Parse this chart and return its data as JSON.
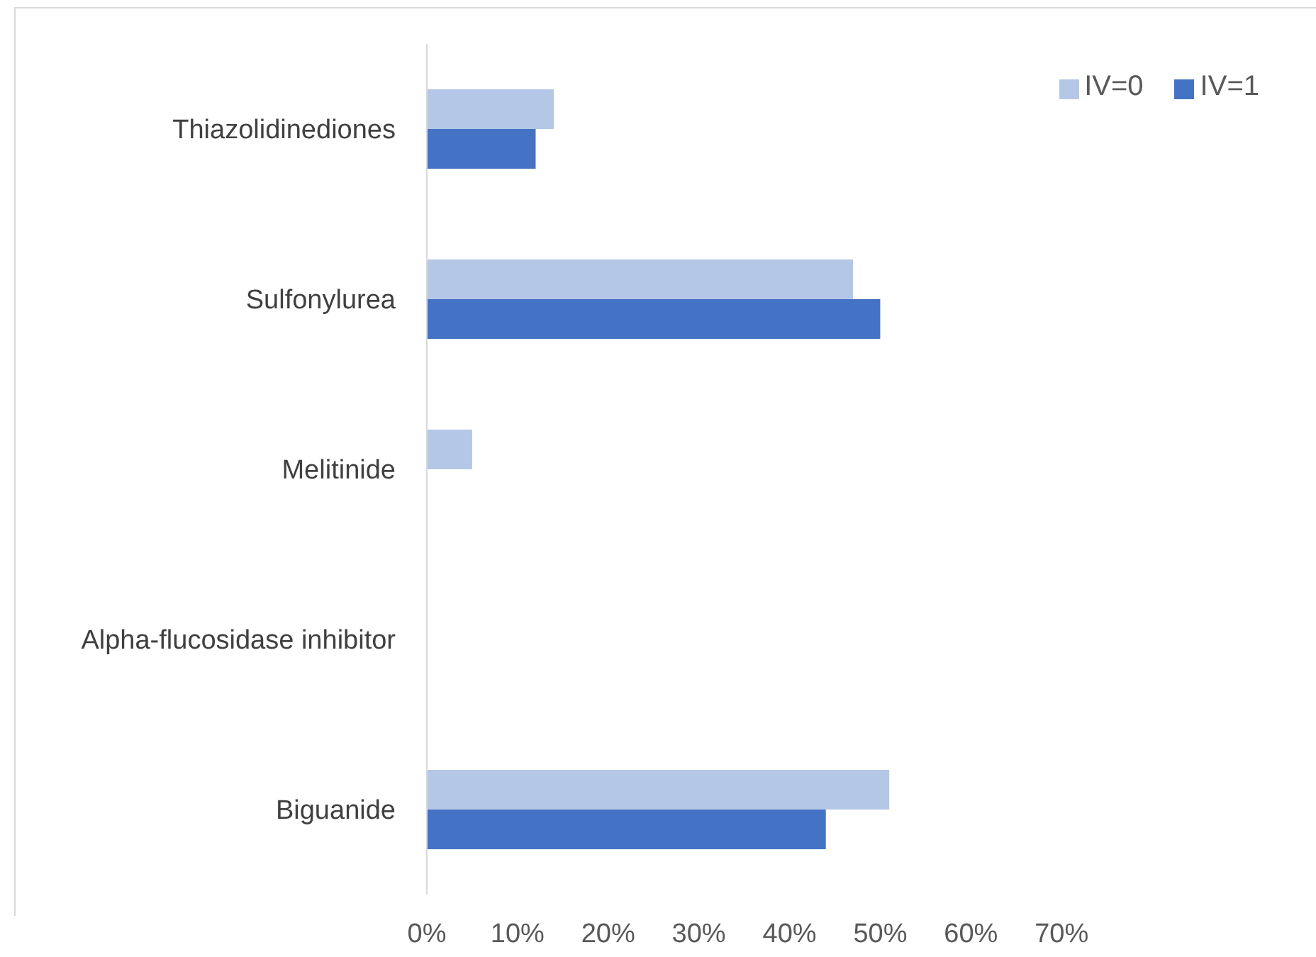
{
  "chart_data": {
    "type": "bar",
    "orientation": "horizontal",
    "categories": [
      "Thiazolidinediones",
      "Sulfonylurea",
      "Melitinide",
      "Alpha-flucosidase inhibitor",
      "Biguanide"
    ],
    "series": [
      {
        "name": "IV=0",
        "color": "#b4c7e7",
        "values": [
          14,
          47,
          5,
          0,
          51
        ]
      },
      {
        "name": "IV=1",
        "color": "#4472c4",
        "values": [
          12,
          50,
          0,
          0,
          44
        ]
      }
    ],
    "xlim": [
      0,
      70
    ],
    "xticks": [
      {
        "value": 0,
        "label": "0%"
      },
      {
        "value": 10,
        "label": "10%"
      },
      {
        "value": 20,
        "label": "20%"
      },
      {
        "value": 30,
        "label": "30%"
      },
      {
        "value": 40,
        "label": "40%"
      },
      {
        "value": 50,
        "label": "50%"
      },
      {
        "value": 60,
        "label": "60%"
      },
      {
        "value": 70,
        "label": "70%"
      }
    ],
    "legend": "top right"
  }
}
